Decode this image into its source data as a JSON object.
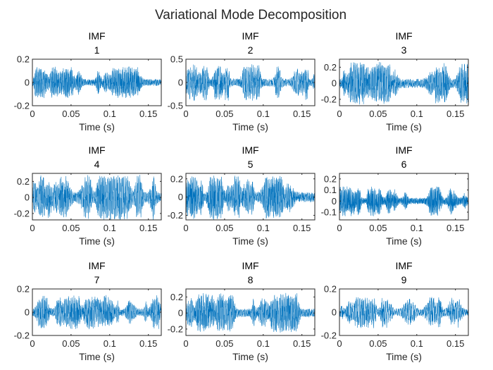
{
  "figure": {
    "title": "Variational Mode Decomposition"
  },
  "chart_data": [
    {
      "type": "line",
      "title": [
        "IMF",
        "1"
      ],
      "xlabel": "Time (s)",
      "xlim": [
        0,
        0.1667
      ],
      "ylim": [
        -0.2,
        0.2
      ],
      "xticks": [
        0,
        0.05,
        0.1,
        0.15
      ],
      "xtick_labels": [
        "0",
        "0.05",
        "0.1",
        "0.15"
      ],
      "yticks": [
        -0.2,
        0,
        0.2
      ],
      "ytick_labels": [
        "-0.2",
        "0",
        "0.2"
      ],
      "signal": {
        "amplitude": 0.12,
        "frequency": 700,
        "seed": 11
      }
    },
    {
      "type": "line",
      "title": [
        "IMF",
        "2"
      ],
      "xlabel": "Time (s)",
      "xlim": [
        0,
        0.1667
      ],
      "ylim": [
        -0.5,
        0.5
      ],
      "xticks": [
        0,
        0.05,
        0.1,
        0.15
      ],
      "xtick_labels": [
        "0",
        "0.05",
        "0.1",
        "0.15"
      ],
      "yticks": [
        -0.5,
        0,
        0.5
      ],
      "ytick_labels": [
        "-0.5",
        "0",
        "0.5"
      ],
      "signal": {
        "amplitude": 0.35,
        "frequency": 520,
        "seed": 23
      }
    },
    {
      "type": "line",
      "title": [
        "IMF",
        "3"
      ],
      "xlabel": "Time (s)",
      "xlim": [
        0,
        0.1667
      ],
      "ylim": [
        -0.28,
        0.3
      ],
      "xticks": [
        0,
        0.05,
        0.1,
        0.15
      ],
      "xtick_labels": [
        "0",
        "0.05",
        "0.1",
        "0.15"
      ],
      "yticks": [
        -0.2,
        0,
        0.2
      ],
      "ytick_labels": [
        "-0.2",
        "0",
        "0.2"
      ],
      "signal": {
        "amplitude": 0.24,
        "frequency": 600,
        "seed": 37
      }
    },
    {
      "type": "line",
      "title": [
        "IMF",
        "4"
      ],
      "xlabel": "Time (s)",
      "xlim": [
        0,
        0.1667
      ],
      "ylim": [
        -0.28,
        0.3
      ],
      "xticks": [
        0,
        0.05,
        0.1,
        0.15
      ],
      "xtick_labels": [
        "0",
        "0.05",
        "0.1",
        "0.15"
      ],
      "yticks": [
        -0.2,
        0,
        0.2
      ],
      "ytick_labels": [
        "-0.2",
        "0",
        "0.2"
      ],
      "signal": {
        "amplitude": 0.25,
        "frequency": 560,
        "seed": 41
      }
    },
    {
      "type": "line",
      "title": [
        "IMF",
        "5"
      ],
      "xlabel": "Time (s)",
      "xlim": [
        0,
        0.1667
      ],
      "ylim": [
        -0.25,
        0.26
      ],
      "xticks": [
        0,
        0.05,
        0.1,
        0.15
      ],
      "xtick_labels": [
        "0",
        "0.05",
        "0.1",
        "0.15"
      ],
      "yticks": [
        -0.2,
        0,
        0.2
      ],
      "ytick_labels": [
        "-0.2",
        "0",
        "0.2"
      ],
      "signal": {
        "amplitude": 0.22,
        "frequency": 650,
        "seed": 53
      }
    },
    {
      "type": "line",
      "title": [
        "IMF",
        "6"
      ],
      "xlabel": "Time (s)",
      "xlim": [
        0,
        0.1667
      ],
      "ylim": [
        -0.17,
        0.25
      ],
      "xticks": [
        0,
        0.05,
        0.1,
        0.15
      ],
      "xtick_labels": [
        "0",
        "0.05",
        "0.1",
        "0.15"
      ],
      "yticks": [
        -0.1,
        0,
        0.1,
        0.2
      ],
      "ytick_labels": [
        "-0.1",
        "0",
        "0.1",
        "0.2"
      ],
      "signal": {
        "amplitude": 0.12,
        "frequency": 900,
        "seed": 67
      }
    },
    {
      "type": "line",
      "title": [
        "IMF",
        "7"
      ],
      "xlabel": "Time (s)",
      "xlim": [
        0,
        0.1667
      ],
      "ylim": [
        -0.2,
        0.2
      ],
      "xticks": [
        0,
        0.05,
        0.1,
        0.15
      ],
      "xtick_labels": [
        "0",
        "0.05",
        "0.1",
        "0.15"
      ],
      "yticks": [
        -0.2,
        0,
        0.2
      ],
      "ytick_labels": [
        "-0.2",
        "0",
        "0.2"
      ],
      "signal": {
        "amplitude": 0.13,
        "frequency": 580,
        "seed": 71
      }
    },
    {
      "type": "line",
      "title": [
        "IMF",
        "8"
      ],
      "xlabel": "Time (s)",
      "xlim": [
        0,
        0.1667
      ],
      "ylim": [
        -0.28,
        0.3
      ],
      "xticks": [
        0,
        0.05,
        0.1,
        0.15
      ],
      "xtick_labels": [
        "0",
        "0.05",
        "0.1",
        "0.15"
      ],
      "yticks": [
        -0.2,
        0,
        0.2
      ],
      "ytick_labels": [
        "-0.2",
        "0",
        "0.2"
      ],
      "signal": {
        "amplitude": 0.22,
        "frequency": 620,
        "seed": 83
      }
    },
    {
      "type": "line",
      "title": [
        "IMF",
        "9"
      ],
      "xlabel": "Time (s)",
      "xlim": [
        0,
        0.1667
      ],
      "ylim": [
        -0.2,
        0.2
      ],
      "xticks": [
        0,
        0.05,
        0.1,
        0.15
      ],
      "xtick_labels": [
        "0",
        "0.05",
        "0.1",
        "0.15"
      ],
      "yticks": [
        -0.2,
        0,
        0.2
      ],
      "ytick_labels": [
        "-0.2",
        "0",
        "0.2"
      ],
      "signal": {
        "amplitude": 0.12,
        "frequency": 420,
        "seed": 97
      }
    }
  ],
  "colors": {
    "line": "#0072BD",
    "axes": "#262626",
    "background": "#ffffff"
  }
}
